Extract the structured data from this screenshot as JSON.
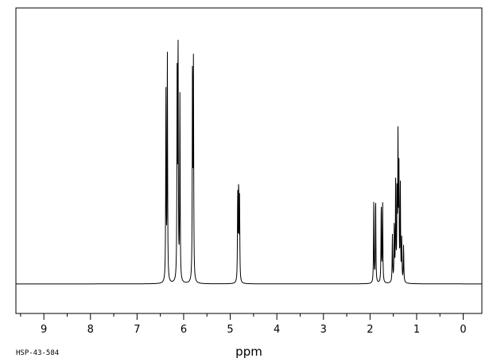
{
  "chart_data": {
    "type": "line",
    "xlabel": "ppm",
    "spectrum_code": "HSP-43-584",
    "x_range": [
      9.6,
      -0.4
    ],
    "x_ticks": [
      9,
      8,
      7,
      6,
      5,
      4,
      3,
      2,
      1,
      0
    ],
    "y_range": [
      -0.12,
      1.12
    ],
    "grid": false,
    "baseline": 0,
    "peaks": [
      {
        "ppm": 6.38,
        "intensity": 0.78
      },
      {
        "ppm": 6.35,
        "intensity": 0.93
      },
      {
        "ppm": 6.14,
        "intensity": 0.81
      },
      {
        "ppm": 6.12,
        "intensity": 0.95
      },
      {
        "ppm": 6.08,
        "intensity": 0.75
      },
      {
        "ppm": 5.81,
        "intensity": 0.88
      },
      {
        "ppm": 5.79,
        "intensity": 0.86
      },
      {
        "ppm": 4.84,
        "intensity": 0.35
      },
      {
        "ppm": 4.82,
        "intensity": 0.38
      },
      {
        "ppm": 4.8,
        "intensity": 0.33
      },
      {
        "ppm": 1.92,
        "intensity": 0.33
      },
      {
        "ppm": 1.88,
        "intensity": 0.35
      },
      {
        "ppm": 1.76,
        "intensity": 0.31
      },
      {
        "ppm": 1.73,
        "intensity": 0.33
      },
      {
        "ppm": 1.52,
        "intensity": 0.19
      },
      {
        "ppm": 1.48,
        "intensity": 0.23
      },
      {
        "ppm": 1.45,
        "intensity": 0.42
      },
      {
        "ppm": 1.42,
        "intensity": 0.36
      },
      {
        "ppm": 1.4,
        "intensity": 0.56
      },
      {
        "ppm": 1.38,
        "intensity": 0.45
      },
      {
        "ppm": 1.35,
        "intensity": 0.39
      },
      {
        "ppm": 1.32,
        "intensity": 0.17
      },
      {
        "ppm": 1.28,
        "intensity": 0.15
      }
    ]
  }
}
